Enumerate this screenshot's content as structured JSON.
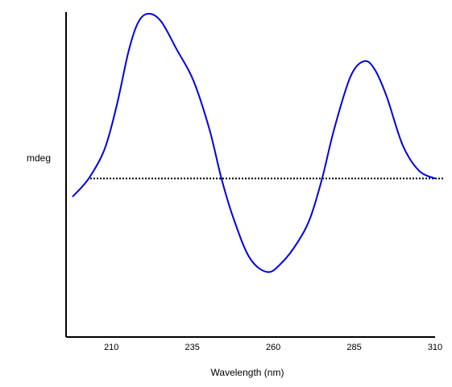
{
  "chart_data": {
    "type": "line",
    "xlabel": "Wavelength (nm)",
    "ylabel": "mdeg",
    "xlim": [
      196,
      310
    ],
    "xticks": [
      210,
      235,
      260,
      285,
      310
    ],
    "ylim": [
      -10,
      10.5
    ],
    "hline": 0,
    "series": [
      {
        "color": "#0000e0",
        "x": [
          198.0,
          203.0,
          207.9,
          211.7,
          215.4,
          218.4,
          221.6,
          225.4,
          230.3,
          235.3,
          240.3,
          244.0,
          247.7,
          252.7,
          258.2,
          262.7,
          267.6,
          271.4,
          275.1,
          278.8,
          283.8,
          288.0,
          291.3,
          295.0,
          300.0,
          305.0,
          310.0
        ],
        "values": [
          -1.15,
          0,
          1.85,
          4.65,
          8.1,
          9.9,
          10.4,
          9.9,
          8.1,
          6.2,
          3.1,
          0,
          -2.5,
          -5.0,
          -5.9,
          -5.3,
          -4.0,
          -2.5,
          0,
          3.1,
          6.4,
          7.4,
          6.9,
          5.2,
          2.1,
          0.5,
          0
        ]
      }
    ]
  }
}
